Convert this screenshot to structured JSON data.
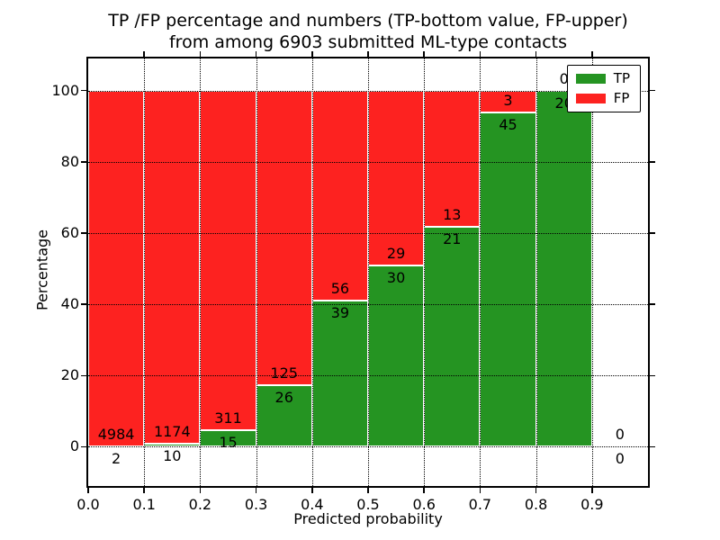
{
  "title": {
    "line1": "TP /FP percentage and numbers (TP-bottom value, FP-upper)",
    "line2": "from among 6903 submitted ML-type contacts"
  },
  "chart_data": {
    "type": "bar",
    "stacked": true,
    "title": "TP /FP percentage and numbers (TP-bottom value, FP-upper) from among 6903 submitted ML-type contacts",
    "xlabel": "Predicted probability",
    "ylabel": "Percentage",
    "total_submitted": 6903,
    "xlim": [
      0.0,
      1.0
    ],
    "ylim": [
      -11,
      109
    ],
    "grid": true,
    "legend_position": "upper right",
    "colors": {
      "tp": "#259422",
      "fp": "#fd2220",
      "bar_edge": "#ffffff",
      "grid": "#000000"
    },
    "legend": [
      {
        "label": "TP",
        "key": "tp",
        "color": "#259422"
      },
      {
        "label": "FP",
        "key": "fp",
        "color": "#fd2220"
      }
    ],
    "yticks": [
      {
        "label": "0",
        "value": 0
      },
      {
        "label": "20",
        "value": 20
      },
      {
        "label": "40",
        "value": 40
      },
      {
        "label": "60",
        "value": 60
      },
      {
        "label": "80",
        "value": 80
      },
      {
        "label": "100",
        "value": 100
      }
    ],
    "xticks": [
      {
        "label": "0.0",
        "value": 0.0
      },
      {
        "label": "0.1",
        "value": 0.1
      },
      {
        "label": "0.2",
        "value": 0.2
      },
      {
        "label": "0.3",
        "value": 0.3
      },
      {
        "label": "0.4",
        "value": 0.4
      },
      {
        "label": "0.5",
        "value": 0.5
      },
      {
        "label": "0.6",
        "value": 0.6
      },
      {
        "label": "0.7",
        "value": 0.7
      },
      {
        "label": "0.8",
        "value": 0.8
      },
      {
        "label": "0.9",
        "value": 0.9
      }
    ],
    "bins": [
      {
        "range": "0.0-0.1",
        "x0": 0.0,
        "x1": 0.1,
        "tp": 2,
        "fp": 4984,
        "tp_pct": 0.04,
        "bar": true
      },
      {
        "range": "0.1-0.2",
        "x0": 0.1,
        "x1": 0.2,
        "tp": 10,
        "fp": 1174,
        "tp_pct": 0.84,
        "bar": true
      },
      {
        "range": "0.2-0.3",
        "x0": 0.2,
        "x1": 0.3,
        "tp": 15,
        "fp": 311,
        "tp_pct": 4.6,
        "bar": true
      },
      {
        "range": "0.3-0.4",
        "x0": 0.3,
        "x1": 0.4,
        "tp": 26,
        "fp": 125,
        "tp_pct": 17.22,
        "bar": true
      },
      {
        "range": "0.4-0.5",
        "x0": 0.4,
        "x1": 0.5,
        "tp": 39,
        "fp": 56,
        "tp_pct": 41.05,
        "bar": true
      },
      {
        "range": "0.5-0.6",
        "x0": 0.5,
        "x1": 0.6,
        "tp": 30,
        "fp": 29,
        "tp_pct": 50.85,
        "bar": true
      },
      {
        "range": "0.6-0.7",
        "x0": 0.6,
        "x1": 0.7,
        "tp": 21,
        "fp": 13,
        "tp_pct": 61.76,
        "bar": true
      },
      {
        "range": "0.7-0.8",
        "x0": 0.7,
        "x1": 0.8,
        "tp": 45,
        "fp": 3,
        "tp_pct": 93.75,
        "bar": true
      },
      {
        "range": "0.8-0.9",
        "x0": 0.8,
        "x1": 0.9,
        "tp": 20,
        "fp": 0,
        "tp_pct": 100,
        "bar": true
      },
      {
        "range": "0.9-1.0",
        "x0": 0.9,
        "x1": 1.0,
        "tp": 0,
        "fp": 0,
        "tp_pct": 0,
        "bar": false
      }
    ]
  }
}
